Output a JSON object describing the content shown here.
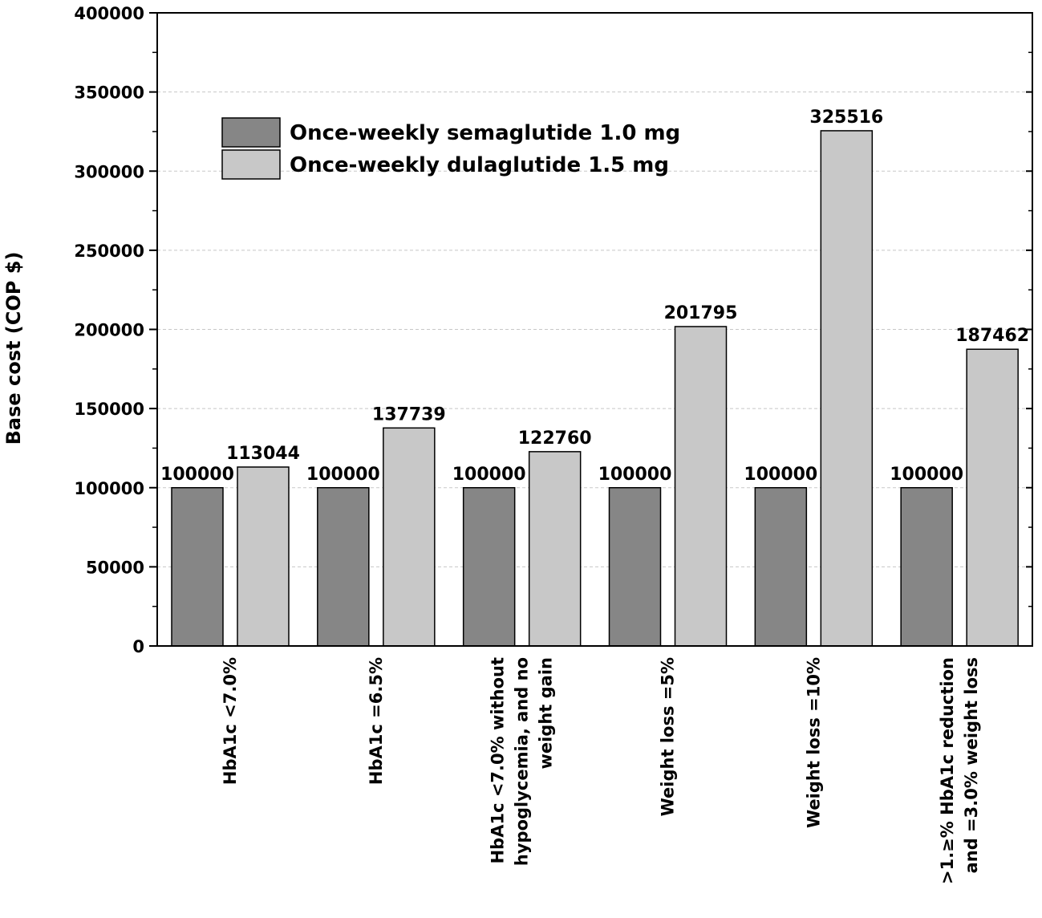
{
  "chart_data": {
    "type": "bar",
    "title": "",
    "xlabel": "",
    "ylabel": "Base cost (COP $)",
    "ylim": [
      0,
      400000
    ],
    "yticks": [
      0,
      50000,
      100000,
      150000,
      200000,
      250000,
      300000,
      350000,
      400000
    ],
    "grid": "horizontal dashed",
    "legend_position": "top-left",
    "categories": [
      [
        "HbA1c <7.0%"
      ],
      [
        "HbA1c =6.5%"
      ],
      [
        "HbA1c <7.0% without",
        "hypoglycemia, and no",
        "weight gain"
      ],
      [
        "Weight loss =5%"
      ],
      [
        "Weight loss =10%"
      ],
      [
        ">1.≥% HbA1c reduction",
        "and =3.0% weight loss"
      ]
    ],
    "series": [
      {
        "name": "Once-weekly semaglutide 1.0 mg",
        "color": "#868686",
        "values": [
          100000,
          100000,
          100000,
          100000,
          100000,
          100000
        ],
        "labels": [
          "100000",
          "100000",
          "100000",
          "100000",
          "100000",
          "100000"
        ]
      },
      {
        "name": "Once-weekly dulaglutide 1.5 mg",
        "color": "#c8c8c8",
        "values": [
          113044,
          137739,
          122760,
          201795,
          325516,
          187462
        ],
        "labels": [
          "113044",
          "137739",
          "122760",
          "201795",
          "325516",
          "187462"
        ]
      }
    ]
  }
}
